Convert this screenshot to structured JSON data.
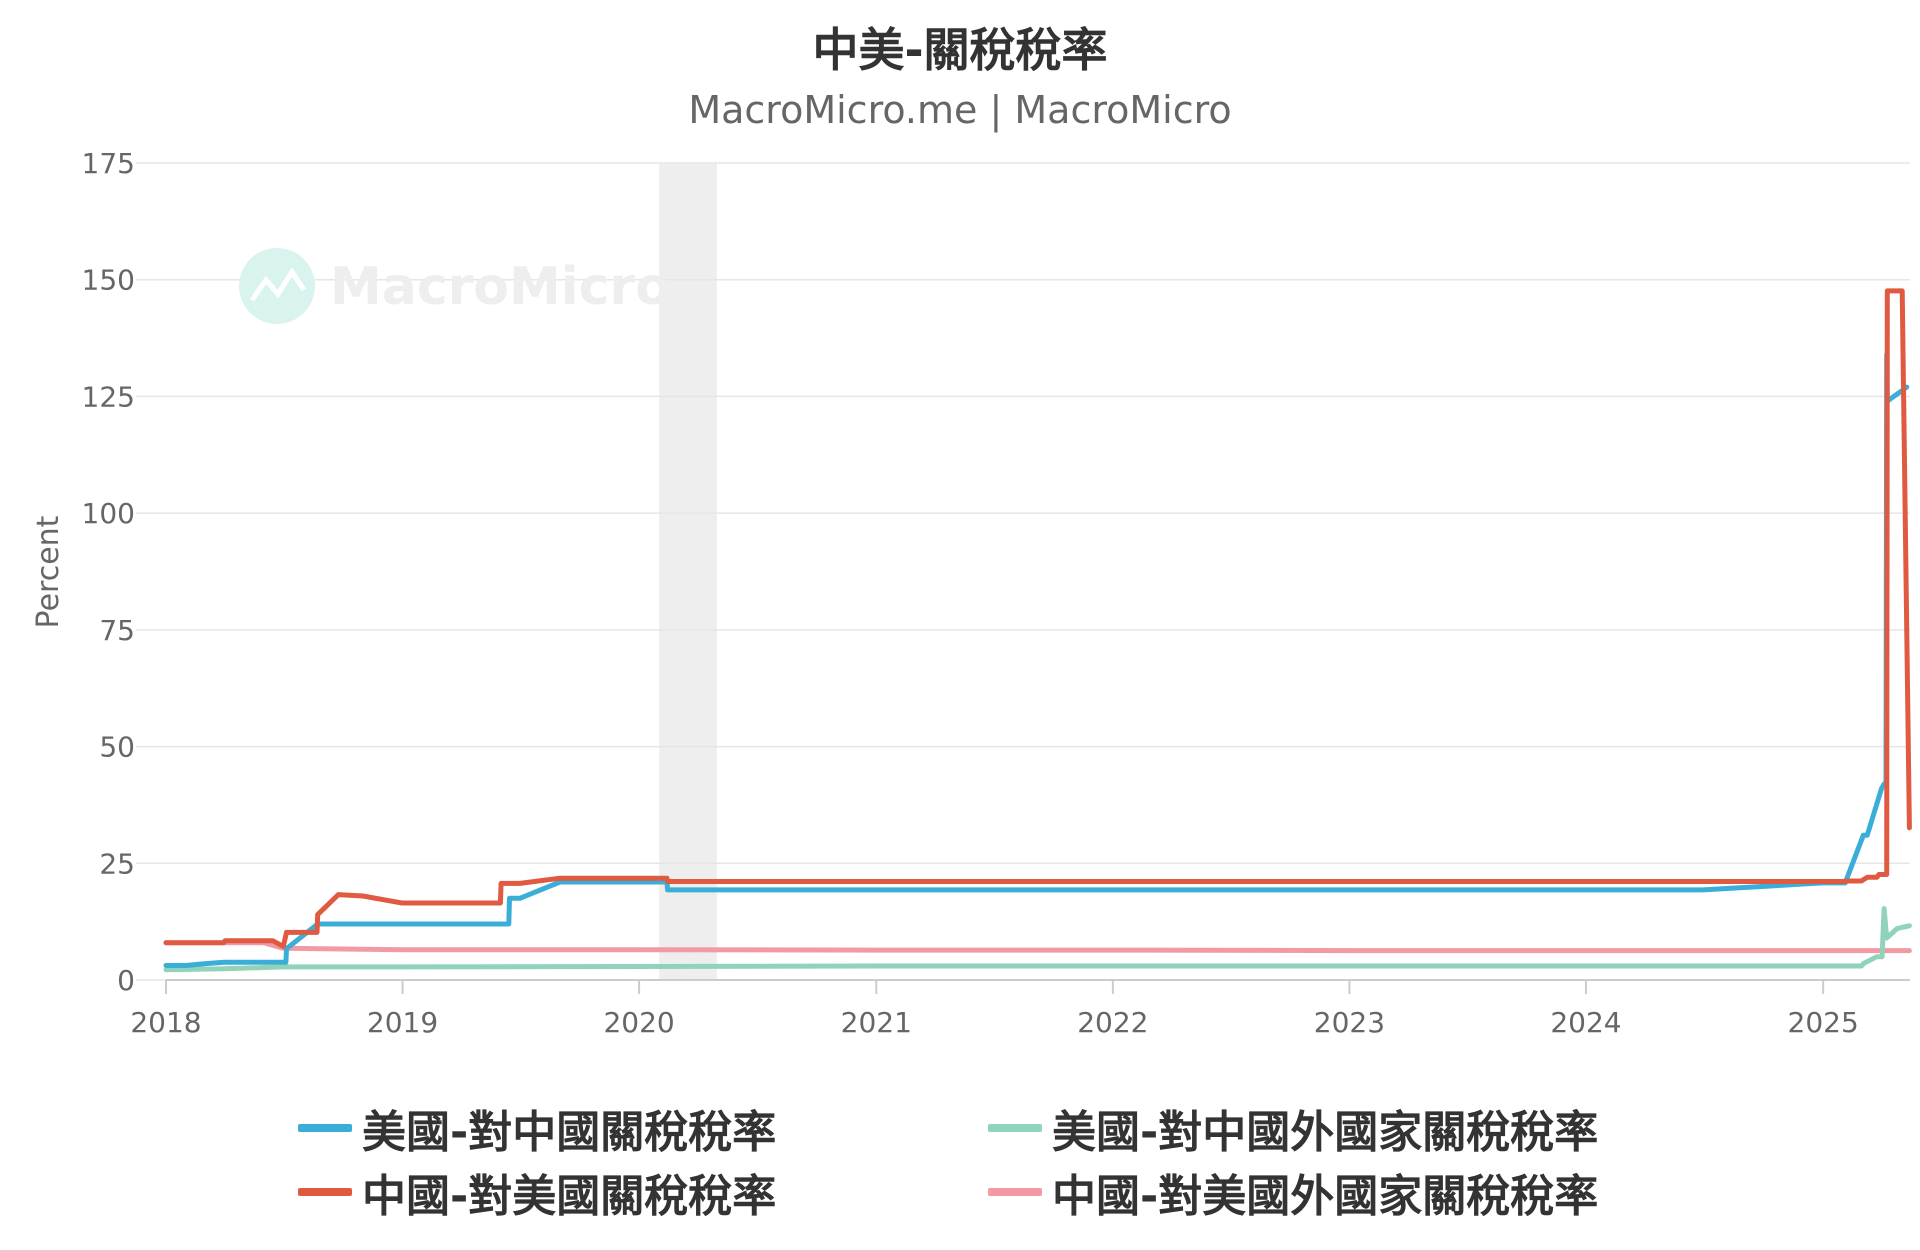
{
  "title": "中美-關稅稅率",
  "subtitle": "MacroMicro.me | MacroMicro",
  "watermark": "MacroMicro",
  "chart_data": {
    "type": "line",
    "title": "中美-關稅稅率",
    "ylabel": "Percent",
    "xlabel": "",
    "ylim": [
      0,
      175
    ],
    "xlim": [
      "2018-01-01",
      "2025-05-15"
    ],
    "y_ticks": [
      "0",
      "25",
      "50",
      "75",
      "100",
      "125",
      "150",
      "175"
    ],
    "x_ticks": [
      "2018",
      "2019",
      "2020",
      "2021",
      "2022",
      "2023",
      "2024",
      "2025"
    ],
    "grid": true,
    "legend_position": "bottom",
    "shaded_region": {
      "from": "2020-02-01",
      "to": "2020-04-30",
      "color": "#eeeeee"
    },
    "series": [
      {
        "name": "美國-對中國關稅稅率",
        "color": "#3BAED8",
        "points": [
          [
            "2018-01-01",
            3.1
          ],
          [
            "2018-02-01",
            3.1
          ],
          [
            "2018-03-01",
            3.5
          ],
          [
            "2018-04-01",
            3.8
          ],
          [
            "2018-07-05",
            3.8
          ],
          [
            "2018-07-06",
            6.7
          ],
          [
            "2018-08-23",
            12.0
          ],
          [
            "2019-06-14",
            12.0
          ],
          [
            "2019-06-15",
            17.5
          ],
          [
            "2019-07-01",
            17.5
          ],
          [
            "2019-09-01",
            21.0
          ],
          [
            "2020-02-13",
            21.0
          ],
          [
            "2020-02-14",
            19.3
          ],
          [
            "2024-06-30",
            19.3
          ],
          [
            "2024-12-31",
            20.8
          ],
          [
            "2025-02-04",
            20.8
          ],
          [
            "2025-03-04",
            31.0
          ],
          [
            "2025-03-10",
            31.0
          ],
          [
            "2025-04-01",
            41.0
          ],
          [
            "2025-04-05",
            42.0
          ],
          [
            "2025-04-08",
            42.0
          ],
          [
            "2025-04-09",
            134.0
          ],
          [
            "2025-04-10",
            124.0
          ],
          [
            "2025-05-10",
            127.0
          ]
        ]
      },
      {
        "name": "中國-對美國關稅稅率",
        "color": "#E05A42",
        "points": [
          [
            "2018-01-01",
            8.0
          ],
          [
            "2018-03-31",
            8.0
          ],
          [
            "2018-04-02",
            8.4
          ],
          [
            "2018-06-15",
            8.4
          ],
          [
            "2018-07-01",
            7.2
          ],
          [
            "2018-07-06",
            10.2
          ],
          [
            "2018-08-22",
            10.2
          ],
          [
            "2018-08-23",
            14.0
          ],
          [
            "2018-09-24",
            18.3
          ],
          [
            "2018-11-01",
            18.0
          ],
          [
            "2018-12-31",
            16.5
          ],
          [
            "2019-06-01",
            16.5
          ],
          [
            "2019-06-02",
            20.7
          ],
          [
            "2019-07-01",
            20.7
          ],
          [
            "2019-09-01",
            21.8
          ],
          [
            "2020-02-13",
            21.8
          ],
          [
            "2020-02-14",
            21.1
          ],
          [
            "2025-01-31",
            21.1
          ],
          [
            "2025-02-10",
            21.2
          ],
          [
            "2025-03-01",
            21.2
          ],
          [
            "2025-03-10",
            22.0
          ],
          [
            "2025-03-25",
            22.0
          ],
          [
            "2025-03-28",
            22.6
          ],
          [
            "2025-04-09",
            22.6
          ],
          [
            "2025-04-10",
            147.6
          ],
          [
            "2025-05-03",
            147.6
          ],
          [
            "2025-05-14",
            32.6
          ]
        ]
      },
      {
        "name": "美國-對中國外國家關稅稅率",
        "color": "#8FD3BA",
        "points": [
          [
            "2018-01-01",
            2.2
          ],
          [
            "2018-04-01",
            2.4
          ],
          [
            "2018-07-01",
            2.8
          ],
          [
            "2019-01-01",
            2.8
          ],
          [
            "2021-01-01",
            3.0
          ],
          [
            "2025-02-15",
            3.0
          ],
          [
            "2025-03-01",
            3.0
          ],
          [
            "2025-03-05",
            3.6
          ],
          [
            "2025-03-25",
            5.0
          ],
          [
            "2025-04-02",
            5.0
          ],
          [
            "2025-04-05",
            15.3
          ],
          [
            "2025-04-09",
            9.0
          ],
          [
            "2025-04-25",
            11.0
          ],
          [
            "2025-05-14",
            11.6
          ]
        ]
      },
      {
        "name": "中國-對美國外國家關稅稅率",
        "color": "#F29AA4",
        "points": [
          [
            "2018-01-01",
            8.0
          ],
          [
            "2018-06-01",
            8.0
          ],
          [
            "2018-07-01",
            6.8
          ],
          [
            "2019-01-01",
            6.5
          ],
          [
            "2020-01-01",
            6.5
          ],
          [
            "2021-01-01",
            6.4
          ],
          [
            "2022-01-01",
            6.4
          ],
          [
            "2023-01-01",
            6.3
          ],
          [
            "2024-01-01",
            6.3
          ],
          [
            "2025-05-14",
            6.3
          ]
        ]
      }
    ]
  }
}
